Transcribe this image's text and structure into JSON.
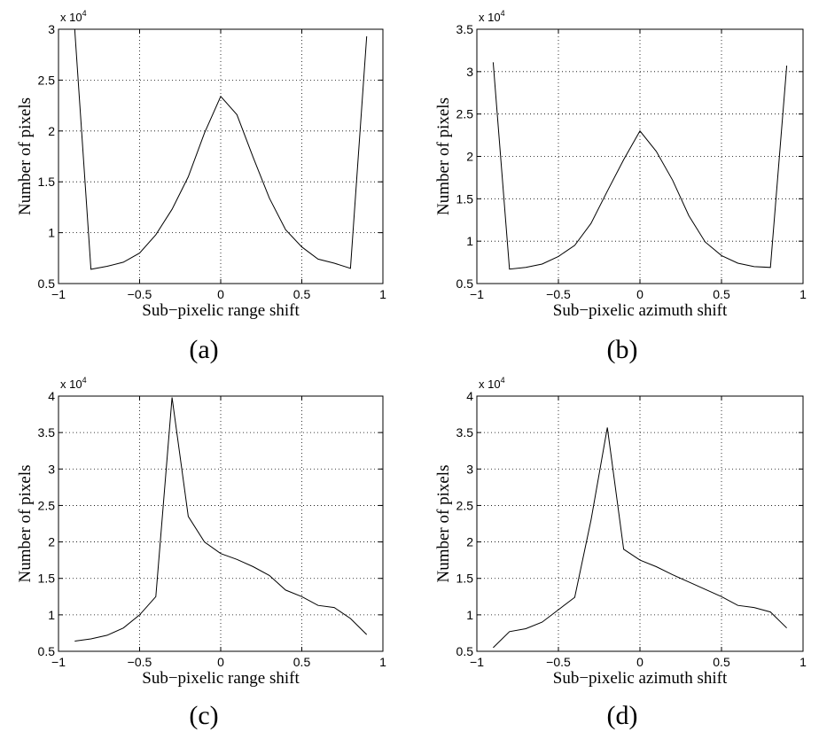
{
  "figure": {
    "ylabel": "Number of pixels",
    "exponent_base": "x 10",
    "exponent_power": "4"
  },
  "chart_data": [
    {
      "type": "line",
      "panel": "(a)",
      "xlabel": "Sub−pixelic range shift",
      "ylabel": "Number of pixels",
      "xlim": [
        -1,
        1
      ],
      "ylim": [
        0.5,
        3
      ],
      "y_multiplier": "x 10^4",
      "grid": true,
      "xticks": [
        -1,
        -0.5,
        0,
        0.5,
        1
      ],
      "xtick_labels": [
        "−1",
        "−0.5",
        "0",
        "0.5",
        "1"
      ],
      "yticks": [
        0.5,
        1,
        1.5,
        2,
        2.5,
        3
      ],
      "ytick_labels": [
        "0.5",
        "1",
        "1.5",
        "2",
        "2.5",
        "3"
      ],
      "series": [
        {
          "x": [
            -0.9,
            -0.8,
            -0.7,
            -0.6,
            -0.5,
            -0.4,
            -0.3,
            -0.2,
            -0.1,
            0.0,
            0.1,
            0.2,
            0.3,
            0.4,
            0.5,
            0.6,
            0.7,
            0.8,
            0.9
          ],
          "y": [
            3.0,
            0.64,
            0.67,
            0.71,
            0.8,
            0.98,
            1.23,
            1.55,
            1.98,
            2.34,
            2.16,
            1.74,
            1.34,
            1.03,
            0.86,
            0.74,
            0.7,
            0.65,
            2.93
          ]
        }
      ]
    },
    {
      "type": "line",
      "panel": "(b)",
      "xlabel": "Sub−pixelic azimuth shift",
      "ylabel": "Number of pixels",
      "xlim": [
        -1,
        1
      ],
      "ylim": [
        0.5,
        3.5
      ],
      "y_multiplier": "x 10^4",
      "grid": true,
      "xticks": [
        -1,
        -0.5,
        0,
        0.5,
        1
      ],
      "xtick_labels": [
        "−1",
        "−0.5",
        "0",
        "0.5",
        "1"
      ],
      "yticks": [
        0.5,
        1,
        1.5,
        2,
        2.5,
        3,
        3.5
      ],
      "ytick_labels": [
        "0.5",
        "1",
        "1.5",
        "2",
        "2.5",
        "3",
        "3.5"
      ],
      "series": [
        {
          "x": [
            -0.9,
            -0.8,
            -0.7,
            -0.6,
            -0.5,
            -0.4,
            -0.3,
            -0.2,
            -0.1,
            0.0,
            0.1,
            0.2,
            0.3,
            0.4,
            0.5,
            0.6,
            0.7,
            0.8,
            0.9
          ],
          "y": [
            3.11,
            0.67,
            0.69,
            0.73,
            0.82,
            0.95,
            1.21,
            1.59,
            1.96,
            2.3,
            2.06,
            1.72,
            1.3,
            0.99,
            0.83,
            0.74,
            0.7,
            0.69,
            3.07
          ]
        }
      ]
    },
    {
      "type": "line",
      "panel": "(c)",
      "xlabel": "Sub−pixelic range shift",
      "ylabel": "Number of pixels",
      "xlim": [
        -1,
        1
      ],
      "ylim": [
        0.5,
        4
      ],
      "y_multiplier": "x 10^4",
      "grid": true,
      "xticks": [
        -1,
        -0.5,
        0,
        0.5,
        1
      ],
      "xtick_labels": [
        "−1",
        "−0.5",
        "0",
        "0.5",
        "1"
      ],
      "yticks": [
        0.5,
        1,
        1.5,
        2,
        2.5,
        3,
        3.5,
        4
      ],
      "ytick_labels": [
        "0.5",
        "1",
        "1.5",
        "2",
        "2.5",
        "3",
        "3.5",
        "4"
      ],
      "series": [
        {
          "x": [
            -0.9,
            -0.8,
            -0.7,
            -0.6,
            -0.5,
            -0.4,
            -0.3,
            -0.2,
            -0.1,
            0.0,
            0.1,
            0.2,
            0.3,
            0.4,
            0.5,
            0.6,
            0.7,
            0.8,
            0.9
          ],
          "y": [
            0.64,
            0.67,
            0.72,
            0.82,
            1.0,
            1.25,
            3.98,
            2.35,
            2.0,
            1.84,
            1.76,
            1.66,
            1.54,
            1.34,
            1.25,
            1.13,
            1.1,
            0.95,
            0.73
          ]
        }
      ]
    },
    {
      "type": "line",
      "panel": "(d)",
      "xlabel": "Sub−pixelic azimuth shift",
      "ylabel": "Number of pixels",
      "xlim": [
        -1,
        1
      ],
      "ylim": [
        0.5,
        4
      ],
      "y_multiplier": "x 10^4",
      "grid": true,
      "xticks": [
        -1,
        -0.5,
        0,
        0.5,
        1
      ],
      "xtick_labels": [
        "−1",
        "−0.5",
        "0",
        "0.5",
        "1"
      ],
      "yticks": [
        0.5,
        1,
        1.5,
        2,
        2.5,
        3,
        3.5,
        4
      ],
      "ytick_labels": [
        "0.5",
        "1",
        "1.5",
        "2",
        "2.5",
        "3",
        "3.5",
        "4"
      ],
      "series": [
        {
          "x": [
            -0.9,
            -0.8,
            -0.7,
            -0.6,
            -0.5,
            -0.4,
            -0.3,
            -0.2,
            -0.1,
            0.0,
            0.1,
            0.2,
            0.3,
            0.4,
            0.5,
            0.6,
            0.7,
            0.8,
            0.9
          ],
          "y": [
            0.55,
            0.77,
            0.81,
            0.9,
            1.07,
            1.24,
            2.3,
            3.57,
            1.9,
            1.75,
            1.66,
            1.55,
            1.45,
            1.35,
            1.25,
            1.13,
            1.1,
            1.04,
            0.82
          ]
        }
      ]
    }
  ]
}
